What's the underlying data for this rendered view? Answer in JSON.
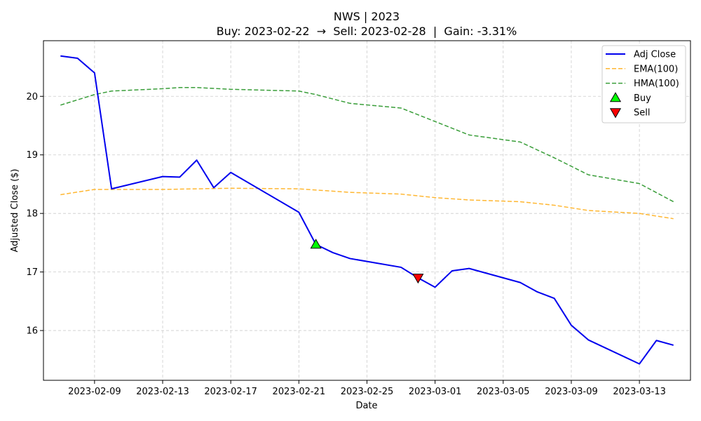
{
  "chart_data": {
    "type": "line",
    "title": "NWS | 2023",
    "subtitle": "Buy: 2023-02-22  →  Sell: 2023-02-28  |  Gain: -3.31%",
    "xlabel": "Date",
    "ylabel": "Adjusted Close ($)",
    "xlim": [
      "2023-02-06",
      "2023-03-16"
    ],
    "ylim": [
      15.15,
      20.95
    ],
    "x_ticks": [
      "2023-02-09",
      "2023-02-13",
      "2023-02-17",
      "2023-02-21",
      "2023-02-25",
      "2023-03-01",
      "2023-03-05",
      "2023-03-09",
      "2023-03-13"
    ],
    "y_ticks": [
      16,
      17,
      18,
      19,
      20
    ],
    "grid": true,
    "legend_position": "top-right",
    "series": [
      {
        "name": "Adj Close",
        "style": "solid",
        "color": "#0000ee",
        "points": [
          [
            "2023-02-07",
            20.69
          ],
          [
            "2023-02-08",
            20.65
          ],
          [
            "2023-02-09",
            20.4
          ],
          [
            "2023-02-10",
            18.42
          ],
          [
            "2023-02-13",
            18.63
          ],
          [
            "2023-02-14",
            18.62
          ],
          [
            "2023-02-15",
            18.91
          ],
          [
            "2023-02-16",
            18.44
          ],
          [
            "2023-02-17",
            18.7
          ],
          [
            "2023-02-21",
            18.02
          ],
          [
            "2023-02-22",
            17.47
          ],
          [
            "2023-02-23",
            17.33
          ],
          [
            "2023-02-24",
            17.23
          ],
          [
            "2023-02-27",
            17.08
          ],
          [
            "2023-02-28",
            16.9
          ],
          [
            "2023-03-01",
            16.74
          ],
          [
            "2023-03-02",
            17.02
          ],
          [
            "2023-03-03",
            17.06
          ],
          [
            "2023-03-06",
            16.82
          ],
          [
            "2023-03-07",
            16.66
          ],
          [
            "2023-03-08",
            16.55
          ],
          [
            "2023-03-09",
            16.09
          ],
          [
            "2023-03-10",
            15.84
          ],
          [
            "2023-03-13",
            15.43
          ],
          [
            "2023-03-14",
            15.83
          ],
          [
            "2023-03-15",
            15.75
          ]
        ]
      },
      {
        "name": "EMA(100)",
        "style": "dashed",
        "color": "#ffb732",
        "points": [
          [
            "2023-02-07",
            18.32
          ],
          [
            "2023-02-09",
            18.41
          ],
          [
            "2023-02-13",
            18.41
          ],
          [
            "2023-02-15",
            18.42
          ],
          [
            "2023-02-17",
            18.43
          ],
          [
            "2023-02-21",
            18.42
          ],
          [
            "2023-02-24",
            18.36
          ],
          [
            "2023-02-27",
            18.33
          ],
          [
            "2023-03-01",
            18.27
          ],
          [
            "2023-03-03",
            18.23
          ],
          [
            "2023-03-06",
            18.2
          ],
          [
            "2023-03-08",
            18.14
          ],
          [
            "2023-03-10",
            18.05
          ],
          [
            "2023-03-13",
            18.0
          ],
          [
            "2023-03-15",
            17.91
          ]
        ]
      },
      {
        "name": "HMA(100)",
        "style": "dashed",
        "color": "#3a9e3a",
        "points": [
          [
            "2023-02-07",
            19.85
          ],
          [
            "2023-02-09",
            20.03
          ],
          [
            "2023-02-10",
            20.09
          ],
          [
            "2023-02-13",
            20.13
          ],
          [
            "2023-02-14",
            20.15
          ],
          [
            "2023-02-15",
            20.15
          ],
          [
            "2023-02-17",
            20.12
          ],
          [
            "2023-02-21",
            20.09
          ],
          [
            "2023-02-22",
            20.03
          ],
          [
            "2023-02-24",
            19.88
          ],
          [
            "2023-02-27",
            19.8
          ],
          [
            "2023-03-01",
            19.57
          ],
          [
            "2023-03-03",
            19.34
          ],
          [
            "2023-03-06",
            19.22
          ],
          [
            "2023-03-08",
            18.95
          ],
          [
            "2023-03-10",
            18.66
          ],
          [
            "2023-03-13",
            18.51
          ],
          [
            "2023-03-15",
            18.2
          ]
        ]
      }
    ],
    "markers": [
      {
        "name": "Buy",
        "shape": "triangle-up",
        "color": "#00ff00",
        "x": "2023-02-22",
        "y": 17.47
      },
      {
        "name": "Sell",
        "shape": "triangle-down",
        "color": "#ff0000",
        "x": "2023-02-28",
        "y": 16.9
      }
    ]
  }
}
